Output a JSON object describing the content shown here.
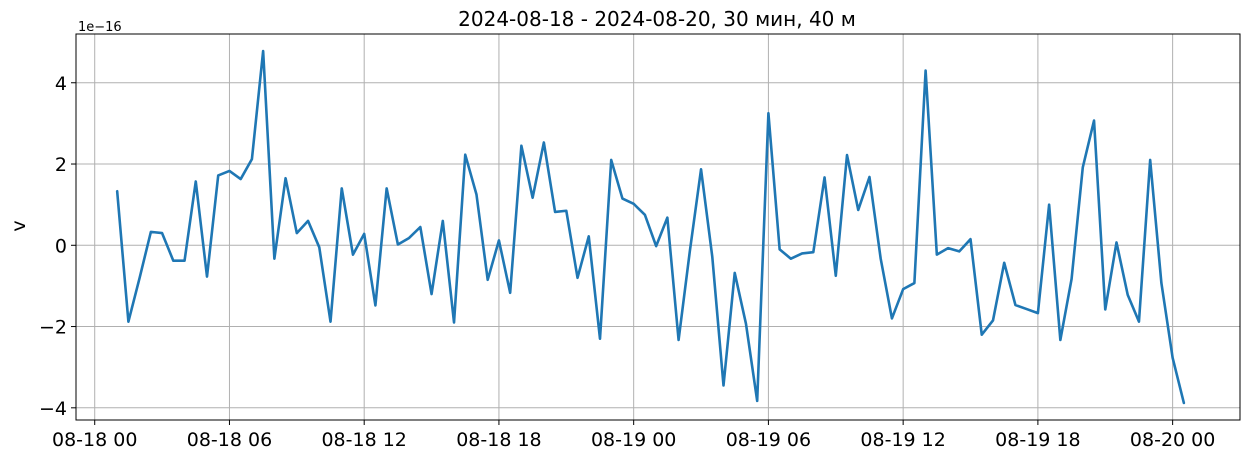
{
  "chart_data": {
    "type": "line",
    "title": "2024-08-18 - 2024-08-20, 30 мин, 40 м",
    "ylabel": "v",
    "xlabel": "",
    "y_offset_label": "1e−16",
    "y_scale": 1e-16,
    "xlim": [
      "2024-08-17T23:10",
      "2024-08-20T03:00"
    ],
    "ylim": [
      -4.3,
      5.2
    ],
    "grid": true,
    "x_ticks": [
      {
        "t": "2024-08-18T00:00",
        "label": "08-18 00"
      },
      {
        "t": "2024-08-18T06:00",
        "label": "08-18 06"
      },
      {
        "t": "2024-08-18T12:00",
        "label": "08-18 12"
      },
      {
        "t": "2024-08-18T18:00",
        "label": "08-18 18"
      },
      {
        "t": "2024-08-19T00:00",
        "label": "08-19 00"
      },
      {
        "t": "2024-08-19T06:00",
        "label": "08-19 06"
      },
      {
        "t": "2024-08-19T12:00",
        "label": "08-19 12"
      },
      {
        "t": "2024-08-19T18:00",
        "label": "08-19 18"
      },
      {
        "t": "2024-08-20T00:00",
        "label": "08-20 00"
      }
    ],
    "y_ticks": [
      {
        "v": -4,
        "label": "−4"
      },
      {
        "v": -2,
        "label": "−2"
      },
      {
        "v": 0,
        "label": "0"
      },
      {
        "v": 2,
        "label": "2"
      },
      {
        "v": 4,
        "label": "4"
      }
    ],
    "series": [
      {
        "color": "#1f77b4",
        "x": [
          "2024-08-18T01:00",
          "2024-08-18T01:30",
          "2024-08-18T02:00",
          "2024-08-18T02:30",
          "2024-08-18T03:00",
          "2024-08-18T03:30",
          "2024-08-18T04:00",
          "2024-08-18T04:30",
          "2024-08-18T05:00",
          "2024-08-18T05:30",
          "2024-08-18T06:00",
          "2024-08-18T06:30",
          "2024-08-18T07:00",
          "2024-08-18T07:30",
          "2024-08-18T08:00",
          "2024-08-18T08:30",
          "2024-08-18T09:00",
          "2024-08-18T09:30",
          "2024-08-18T10:00",
          "2024-08-18T10:30",
          "2024-08-18T11:00",
          "2024-08-18T11:30",
          "2024-08-18T12:00",
          "2024-08-18T12:30",
          "2024-08-18T13:00",
          "2024-08-18T13:30",
          "2024-08-18T14:00",
          "2024-08-18T14:30",
          "2024-08-18T15:00",
          "2024-08-18T15:30",
          "2024-08-18T16:00",
          "2024-08-18T16:30",
          "2024-08-18T17:00",
          "2024-08-18T17:30",
          "2024-08-18T18:00",
          "2024-08-18T18:30",
          "2024-08-18T19:00",
          "2024-08-18T19:30",
          "2024-08-18T20:00",
          "2024-08-18T20:30",
          "2024-08-18T21:00",
          "2024-08-18T21:30",
          "2024-08-18T22:00",
          "2024-08-18T22:30",
          "2024-08-18T23:00",
          "2024-08-18T23:30",
          "2024-08-19T00:00",
          "2024-08-19T00:30",
          "2024-08-19T01:00",
          "2024-08-19T01:30",
          "2024-08-19T02:00",
          "2024-08-19T02:30",
          "2024-08-19T03:00",
          "2024-08-19T03:30",
          "2024-08-19T04:00",
          "2024-08-19T04:30",
          "2024-08-19T05:00",
          "2024-08-19T05:30",
          "2024-08-19T06:00",
          "2024-08-19T06:30",
          "2024-08-19T07:00",
          "2024-08-19T07:30",
          "2024-08-19T08:00",
          "2024-08-19T08:30",
          "2024-08-19T09:00",
          "2024-08-19T09:30",
          "2024-08-19T10:00",
          "2024-08-19T10:30",
          "2024-08-19T11:00",
          "2024-08-19T11:30",
          "2024-08-19T12:00",
          "2024-08-19T12:30",
          "2024-08-19T13:00",
          "2024-08-19T13:30",
          "2024-08-19T14:00",
          "2024-08-19T14:30",
          "2024-08-19T15:00",
          "2024-08-19T15:30",
          "2024-08-19T16:00",
          "2024-08-19T16:30",
          "2024-08-19T17:00",
          "2024-08-19T17:30",
          "2024-08-19T18:00",
          "2024-08-19T18:30",
          "2024-08-19T19:00",
          "2024-08-19T19:30",
          "2024-08-19T20:00",
          "2024-08-19T20:30",
          "2024-08-19T21:00",
          "2024-08-19T21:30",
          "2024-08-19T22:00",
          "2024-08-19T22:30",
          "2024-08-19T23:00",
          "2024-08-19T23:30",
          "2024-08-20T00:00",
          "2024-08-20T00:30"
        ],
        "values": [
          1.33,
          -1.88,
          -0.8,
          0.33,
          0.3,
          -0.38,
          -0.38,
          1.57,
          -0.77,
          1.72,
          1.83,
          1.63,
          2.12,
          4.78,
          -0.33,
          1.65,
          0.3,
          0.6,
          -0.05,
          -1.88,
          1.4,
          -0.23,
          0.28,
          -1.48,
          1.4,
          0.02,
          0.18,
          0.45,
          -1.2,
          0.6,
          -1.9,
          2.23,
          1.25,
          -0.85,
          0.12,
          -1.17,
          2.45,
          1.17,
          2.53,
          0.82,
          0.85,
          -0.8,
          0.22,
          -2.3,
          2.1,
          1.15,
          1.02,
          0.75,
          -0.02,
          0.68,
          -2.33,
          -0.15,
          1.87,
          -0.28,
          -3.45,
          -0.68,
          -1.93,
          -3.83,
          3.25,
          -0.1,
          -0.33,
          -0.2,
          -0.17,
          1.67,
          -0.75,
          2.22,
          0.87,
          1.68,
          -0.33,
          -1.8,
          -1.08,
          -0.93,
          4.3,
          -0.23,
          -0.07,
          -0.15,
          0.15,
          -2.2,
          -1.85,
          -0.43,
          -1.47,
          -1.57,
          -1.67,
          1.0,
          -2.33,
          -0.83,
          1.92,
          3.07,
          -1.58,
          0.07,
          -1.22,
          -1.88,
          2.1,
          -0.93,
          -2.77,
          -3.88
        ]
      }
    ]
  }
}
